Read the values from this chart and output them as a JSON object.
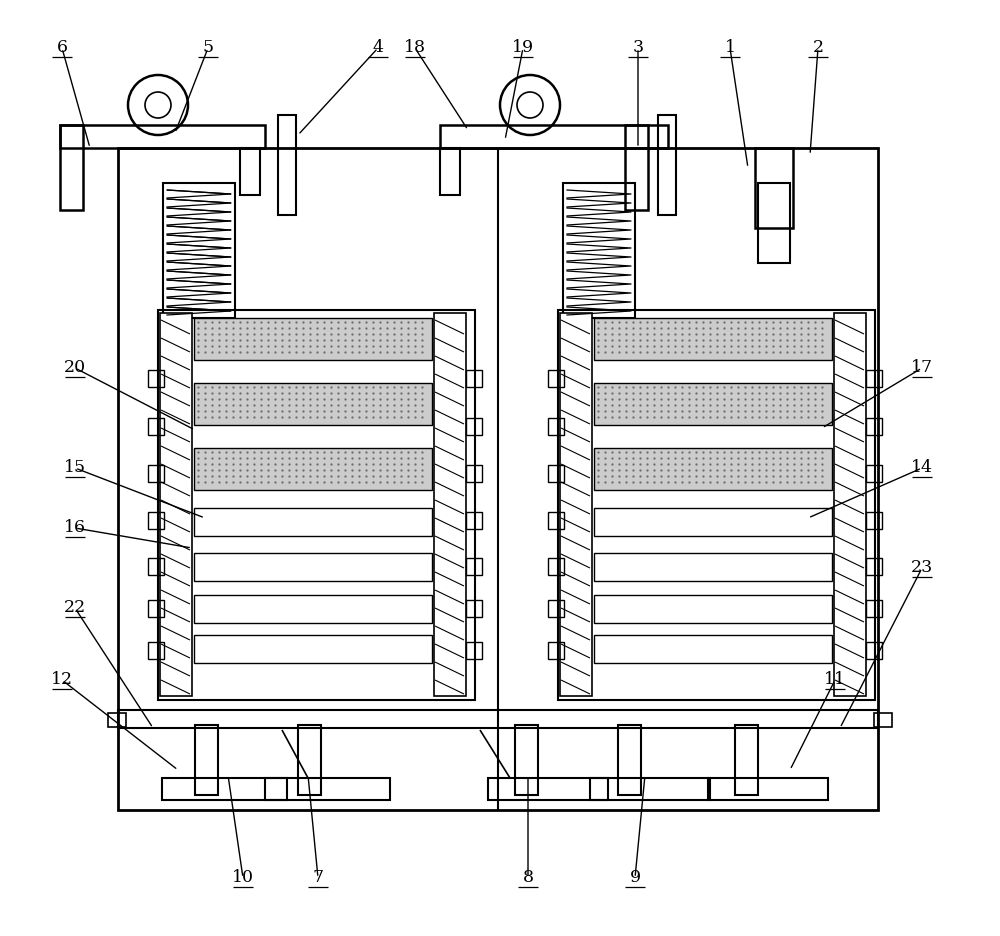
{
  "bg": "#ffffff",
  "lc": "#000000",
  "annotations": [
    [
      "1",
      730,
      48,
      748,
      168
    ],
    [
      "2",
      818,
      48,
      810,
      155
    ],
    [
      "3",
      638,
      48,
      638,
      148
    ],
    [
      "4",
      378,
      48,
      298,
      135
    ],
    [
      "18",
      415,
      48,
      468,
      130
    ],
    [
      "19",
      523,
      48,
      505,
      140
    ],
    [
      "5",
      208,
      48,
      175,
      133
    ],
    [
      "6",
      62,
      48,
      90,
      148
    ],
    [
      "20",
      75,
      368,
      195,
      430
    ],
    [
      "15",
      75,
      468,
      205,
      518
    ],
    [
      "16",
      75,
      528,
      192,
      548
    ],
    [
      "17",
      922,
      368,
      822,
      428
    ],
    [
      "14",
      922,
      468,
      808,
      518
    ],
    [
      "22",
      75,
      608,
      153,
      728
    ],
    [
      "12",
      62,
      680,
      178,
      770
    ],
    [
      "23",
      922,
      568,
      840,
      728
    ],
    [
      "11",
      835,
      680,
      790,
      770
    ],
    [
      "7",
      318,
      878,
      308,
      775
    ],
    [
      "8",
      528,
      878,
      528,
      775
    ],
    [
      "9",
      635,
      878,
      645,
      775
    ],
    [
      "10",
      243,
      878,
      228,
      775
    ]
  ]
}
